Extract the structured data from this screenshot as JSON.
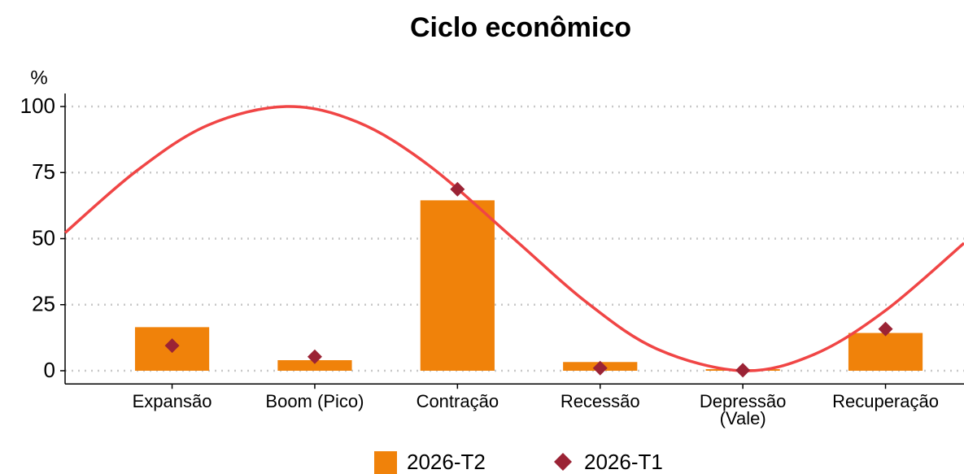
{
  "chart_data": {
    "type": "bar",
    "title": "Ciclo econômico",
    "y_label": "%",
    "categories": [
      "Expansão",
      "Boom (Pico)",
      "Contração",
      "Recessão",
      "Depressão (Vale)",
      "Recuperação"
    ],
    "series": [
      {
        "name": "2026-T2",
        "type": "bar",
        "color": "#f0820a",
        "values": [
          16.5,
          4,
          64.5,
          3.3,
          0.6,
          14.3
        ]
      },
      {
        "name": "2026-T1",
        "type": "scatter",
        "color": "#9b2335",
        "values": [
          9.5,
          5.3,
          68.7,
          1,
          0.2,
          15.8
        ]
      }
    ],
    "curve": {
      "color": "#f04545",
      "x": [
        0.25,
        0.75,
        1.25,
        1.8,
        2.3,
        2.8,
        3.4,
        3.9,
        4.4,
        5.0,
        5.5,
        6.0,
        6.55
      ],
      "values": [
        52.2,
        75.6,
        92.9,
        100,
        94.1,
        77.7,
        49.7,
        26.1,
        8.2,
        0,
        6.2,
        22.8,
        48.3
      ]
    },
    "xlim": [
      0.25,
      6.55
    ],
    "ylim": [
      -5,
      100
    ],
    "yticks": [
      0,
      25,
      50,
      75,
      100
    ],
    "grid": true
  }
}
